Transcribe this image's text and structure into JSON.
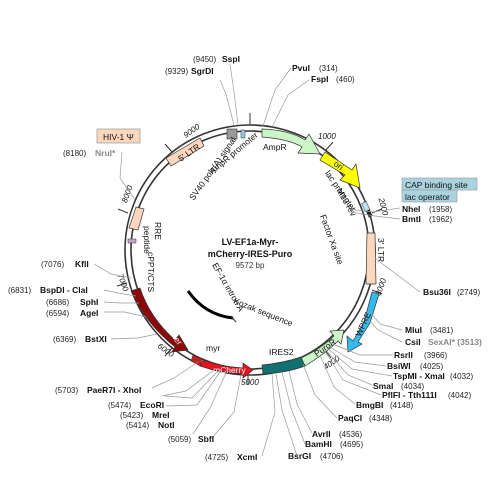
{
  "plasmid": {
    "name_line1": "LV-EF1a-Myr-",
    "name_line2": "mCherry-IRES-Puro",
    "length_label": "9572 bp"
  },
  "tick_labels": [
    "1000",
    "2000",
    "3000",
    "4000",
    "5000",
    "6000",
    "7000",
    "8000",
    "9000"
  ],
  "sites": [
    {
      "name": "SspI",
      "pos": "(9450)"
    },
    {
      "name": "SgrDI",
      "pos": "(9329)"
    },
    {
      "name": "PvuI",
      "pos": "(314)"
    },
    {
      "name": "FspI",
      "pos": "(460)"
    },
    {
      "name": "NruI*",
      "pos": "(8180)"
    },
    {
      "name": "NheI",
      "pos": "(1958)"
    },
    {
      "name": "BmtI",
      "pos": "(1962)"
    },
    {
      "name": "KflI",
      "pos": "(7076)"
    },
    {
      "name": "BspDI - ClaI",
      "pos": "(6831)"
    },
    {
      "name": "SphI",
      "pos": "(6686)"
    },
    {
      "name": "AgeI",
      "pos": "(6594)"
    },
    {
      "name": "Bsu36I",
      "pos": "(2749)"
    },
    {
      "name": "BstXI",
      "pos": "(6369)"
    },
    {
      "name": "MluI",
      "pos": "(3481)"
    },
    {
      "name": "CsiI",
      "pos": "SexAI* (3513)"
    },
    {
      "name": "RsrII",
      "pos": "(3966)"
    },
    {
      "name": "BsiWI",
      "pos": "(4025)"
    },
    {
      "name": "TspMI - XmaI",
      "pos": "(4032)"
    },
    {
      "name": "SmaI",
      "pos": "(4034)"
    },
    {
      "name": "PflFI - Tth111I",
      "pos": "(4042)"
    },
    {
      "name": "BmgBI",
      "pos": "(4148)"
    },
    {
      "name": "PaeR7I - XhoI",
      "pos": "(5703)"
    },
    {
      "name": "EcoRI",
      "pos": "(5474)"
    },
    {
      "name": "MreI",
      "pos": "(5423)"
    },
    {
      "name": "NotI",
      "pos": "(5414)"
    },
    {
      "name": "PaqCI",
      "pos": "(4348)"
    },
    {
      "name": "AvrII",
      "pos": "(4536)"
    },
    {
      "name": "BamHI",
      "pos": "(4695)"
    },
    {
      "name": "SbfI",
      "pos": "(5059)"
    },
    {
      "name": "XcmI",
      "pos": "(4725)"
    },
    {
      "name": "BsrGI",
      "pos": "(4706)"
    }
  ],
  "features": {
    "hiv_psi": "HIV-1 Ψ",
    "ltr5": "5' LTR",
    "sv40": "SV40 poly(A) signal",
    "ampr_promoter": "AmpR promoter",
    "ampr": "AmpR",
    "ori": "ori",
    "lac_promoter": "lac promoter",
    "m13_rev": "M13 rev",
    "cap_binding": "CAP binding site",
    "lac_operator": "lac operator",
    "factor_xa": "Factor Xa site",
    "ltr3": "3' LTR",
    "rre": "RRE",
    "peptide": "peptide",
    "cppt": "cPPT/CTS",
    "ef1a_intron": "EF-1α intron A",
    "kozak": "Kozak sequence",
    "ef1a_promoter": "EF-1α promoter",
    "myr": "myr",
    "mcherry": "mCherry",
    "ires2": "IRES2",
    "puror": "PuroR",
    "wpre": "WPRE"
  },
  "colors": {
    "backbone": "#333333",
    "ampr": "#ccf5c8",
    "ori": "#ffff00",
    "ltr": "#fcd7bd",
    "wpre": "#33bbee",
    "puror": "#ccf5c8",
    "ires": "#127070",
    "mcherry": "#e8131f",
    "ef1a": "#8a0a0a",
    "cap": "#a9d3df"
  }
}
